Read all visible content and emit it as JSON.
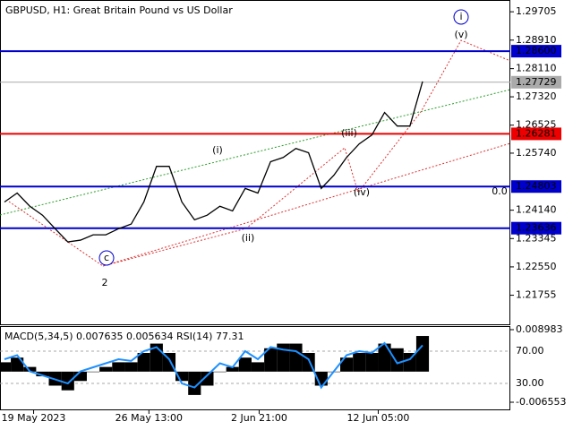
{
  "chart_data": [
    {
      "type": "line",
      "title": "GBPUSD, H1:  Great Britain Pound vs US Dollar",
      "series": [
        {
          "color": "#000000",
          "values": [
            1.2437,
            1.2462,
            1.2425,
            1.24,
            1.2362,
            1.2325,
            1.233,
            1.2345,
            1.2345,
            1.2362,
            1.2375,
            1.2437,
            1.2537,
            1.2537,
            1.2437,
            1.2387,
            1.24,
            1.2425,
            1.2412,
            1.2475,
            1.2462,
            1.255,
            1.2562,
            1.2587,
            1.2575,
            1.2475,
            1.2512,
            1.2562,
            1.26,
            1.2625,
            1.2688,
            1.265,
            1.265,
            1.2775
          ]
        }
      ],
      "ylim": [
        1.2094,
        1.3001
      ],
      "yticks": [
        1.29705,
        {
          "value": 1.2891,
          "label": "1.28910"
        },
        {
          "value": 1.2811,
          "label": "1.28110"
        },
        {
          "value": 1.2732,
          "label": "1.27320"
        },
        1.26525,
        {
          "value": 1.2574,
          "label": "1.25740"
        },
        {
          "value": 1.2414,
          "label": "1.24140"
        },
        1.23345,
        {
          "value": 1.2255,
          "label": "1.22550"
        },
        1.21755
      ],
      "levels": [
        {
          "value": 1.286,
          "label": "1.28600",
          "color": "#0000cc"
        },
        {
          "value": 1.27729,
          "label": "1.27729",
          "color": "#aaaaaa"
        },
        {
          "value": 1.26281,
          "label": "1.26281",
          "color": "#ee0000"
        },
        {
          "value": 1.24803,
          "label": "1.24803",
          "color": "#0000cc"
        },
        {
          "value": 1.23636,
          "label": "1.23636",
          "color": "#0000cc"
        }
      ],
      "annotations": [
        "i",
        "(v)",
        "(iii)",
        "(i)",
        "(iv)",
        "(ii)",
        "c",
        "2",
        "0.0"
      ]
    },
    {
      "type": "macd",
      "label": "MACD(5,34,5) 0.007635 0.005634 RSI(14) 77.31",
      "series": [
        {
          "color": "#000000",
          "values": [
            0.002,
            0.003,
            0.001,
            -0.001,
            -0.003,
            -0.004,
            -0.002,
            0.0,
            0.001,
            0.002,
            0.002,
            0.004,
            0.006,
            0.004,
            -0.002,
            -0.005,
            -0.003,
            0.0,
            0.001,
            0.003,
            0.002,
            0.005,
            0.006,
            0.006,
            0.004,
            -0.003,
            0.0,
            0.003,
            0.004,
            0.004,
            0.006,
            0.005,
            0.004,
            0.007635
          ]
        },
        {
          "color": "#1e90ff",
          "axis": "y2",
          "values": [
            60,
            65,
            45,
            40,
            35,
            30,
            45,
            50,
            55,
            60,
            58,
            70,
            75,
            60,
            30,
            25,
            40,
            55,
            50,
            70,
            60,
            75,
            72,
            70,
            60,
            25,
            45,
            65,
            70,
            68,
            80,
            55,
            60,
            77.31
          ]
        }
      ],
      "ylim": [
        -0.00828,
        0.00956
      ],
      "yticks": [
        0.008983,
        -0.006553
      ],
      "y2lim": [
        -3.3,
        100
      ],
      "y2ticks": [
        {
          "value": 70,
          "label": "70.00"
        },
        {
          "value": 30,
          "label": "30.00"
        }
      ],
      "xticks": [
        {
          "value": 2.3,
          "label": "19 May 2023"
        },
        {
          "value": 11.4,
          "label": "26 May 13:00"
        },
        {
          "value": 20.1,
          "label": "2 Jun 21:00"
        },
        {
          "value": 29.5,
          "label": "12 Jun 05:00"
        }
      ]
    }
  ]
}
